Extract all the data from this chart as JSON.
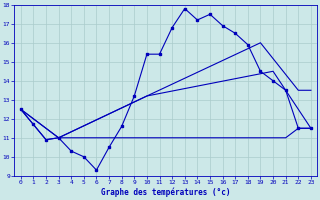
{
  "title": "Graphe des températures (°c)",
  "background_color": "#cce8e8",
  "grid_color": "#aacccc",
  "line_color": "#0000bb",
  "xlim": [
    -0.5,
    23.5
  ],
  "ylim": [
    9,
    18
  ],
  "xticks": [
    0,
    1,
    2,
    3,
    4,
    5,
    6,
    7,
    8,
    9,
    10,
    11,
    12,
    13,
    14,
    15,
    16,
    17,
    18,
    19,
    20,
    21,
    22,
    23
  ],
  "yticks": [
    9,
    10,
    11,
    12,
    13,
    14,
    15,
    16,
    17,
    18
  ],
  "line_main_x": [
    0,
    1,
    2,
    3,
    4,
    5,
    6,
    7,
    8,
    9,
    10,
    11,
    12,
    13,
    14,
    15,
    16,
    17,
    18,
    19,
    20,
    21,
    22,
    23
  ],
  "line_main_y": [
    12.5,
    11.7,
    10.9,
    11.0,
    10.3,
    10.0,
    9.3,
    10.5,
    11.6,
    13.2,
    15.4,
    15.4,
    16.8,
    17.8,
    17.2,
    17.5,
    16.9,
    16.5,
    15.9,
    14.5,
    14.0,
    13.5,
    11.5,
    11.5
  ],
  "line_flat_x": [
    0,
    1,
    2,
    3,
    4,
    5,
    6,
    7,
    8,
    9,
    10,
    11,
    12,
    13,
    14,
    15,
    16,
    17,
    18,
    19,
    20,
    21,
    22,
    23
  ],
  "line_flat_y": [
    12.5,
    11.7,
    10.9,
    11.0,
    11.0,
    11.0,
    11.0,
    11.0,
    11.0,
    11.0,
    11.0,
    11.0,
    11.0,
    11.0,
    11.0,
    11.0,
    11.0,
    11.0,
    11.0,
    11.0,
    11.0,
    11.0,
    11.5,
    11.5
  ],
  "line_diag1_x": [
    0,
    3,
    10,
    20,
    23
  ],
  "line_diag1_y": [
    12.5,
    11.0,
    13.2,
    14.5,
    11.5
  ],
  "line_diag2_x": [
    0,
    3,
    10,
    19,
    22,
    23
  ],
  "line_diag2_y": [
    12.5,
    11.0,
    13.2,
    16.0,
    13.5,
    13.5
  ]
}
